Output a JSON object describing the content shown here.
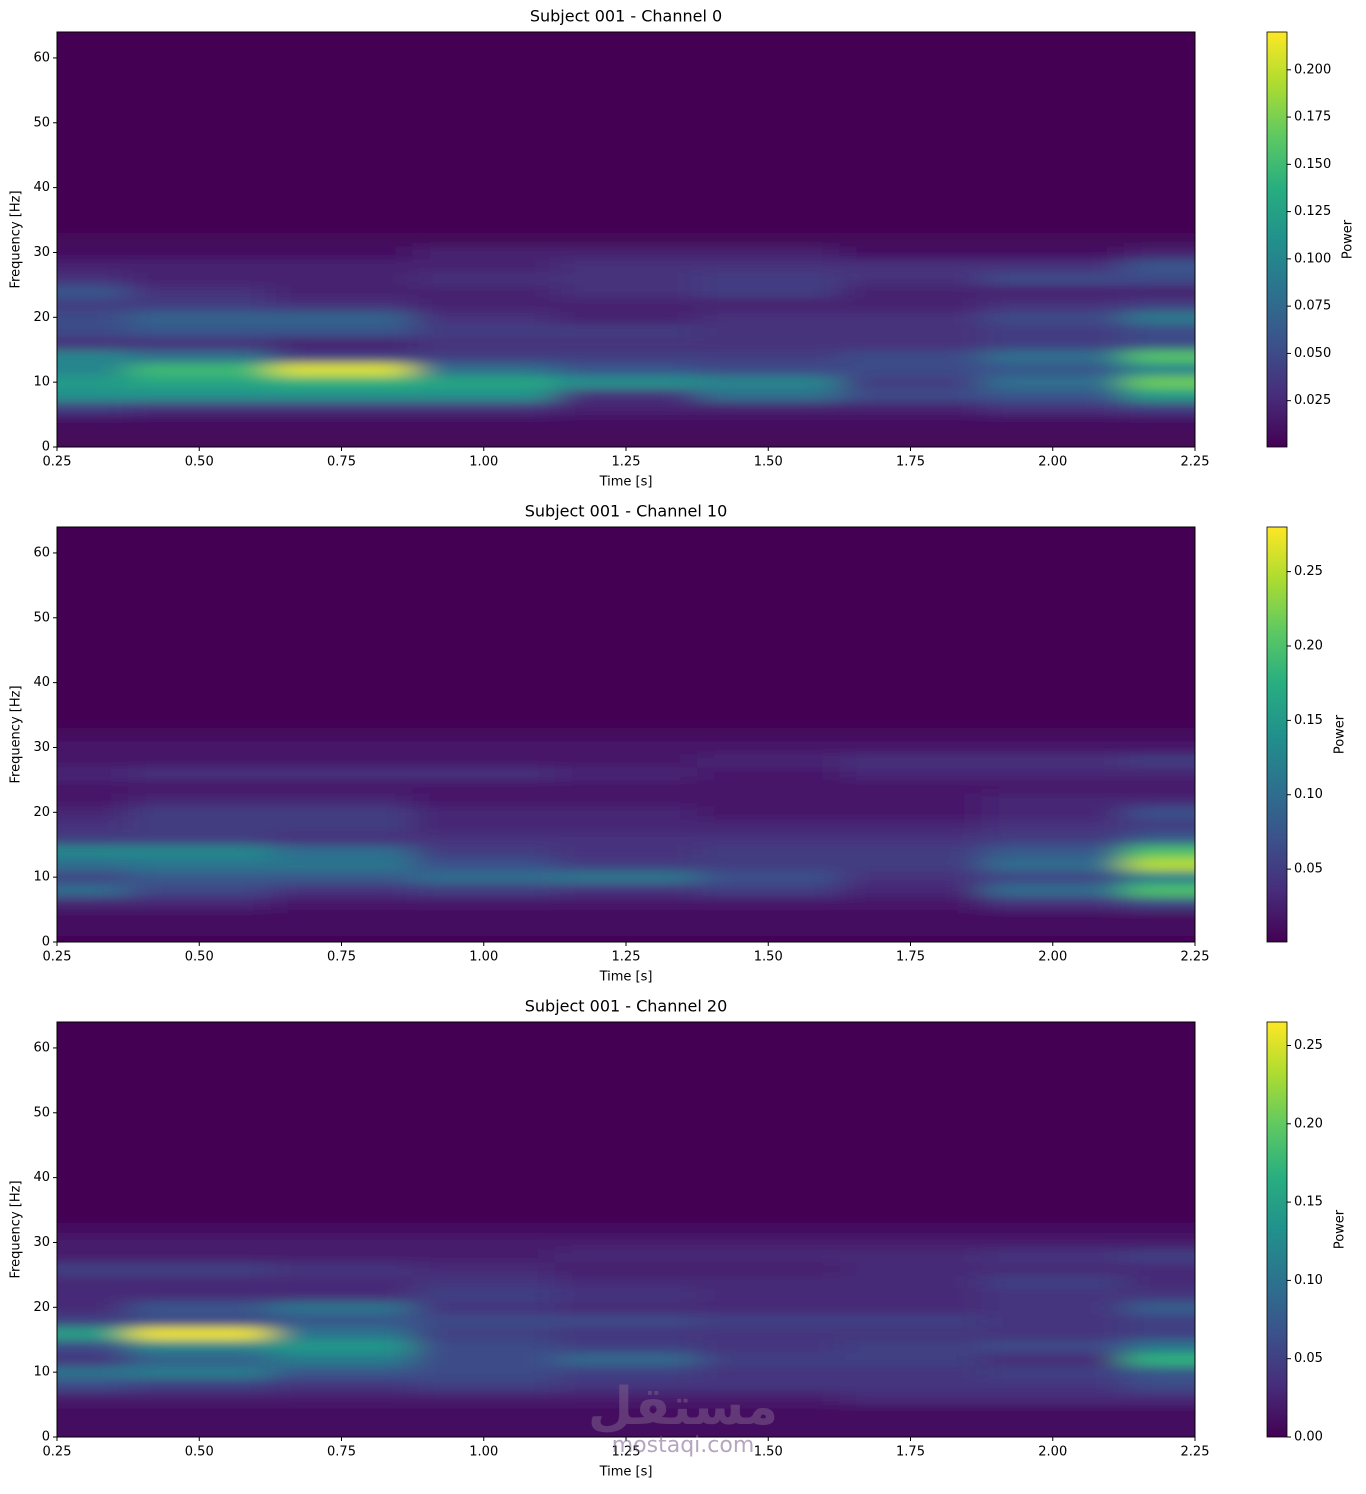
{
  "chart_data": [
    {
      "type": "heatmap",
      "title": "Subject 001 - Channel 0",
      "xlabel": "Time [s]",
      "ylabel": "Frequency [Hz]",
      "colorbar_label": "Power",
      "colormap": "viridis",
      "x": [
        0.25,
        0.5,
        0.75,
        1.0,
        1.25,
        1.5,
        1.75,
        2.0,
        2.25
      ],
      "y": [
        0,
        2,
        4,
        6,
        8,
        10,
        12,
        14,
        16,
        18,
        20,
        22,
        24,
        26,
        28,
        30,
        32
      ],
      "values": [
        [
          0.005,
          0.005,
          0.005,
          0.005,
          0.005,
          0.005,
          0.005,
          0.005,
          0.005
        ],
        [
          0.005,
          0.005,
          0.005,
          0.005,
          0.005,
          0.005,
          0.005,
          0.005,
          0.005
        ],
        [
          0.01,
          0.01,
          0.01,
          0.01,
          0.01,
          0.01,
          0.01,
          0.01,
          0.01
        ],
        [
          0.04,
          0.03,
          0.03,
          0.03,
          0.02,
          0.02,
          0.02,
          0.03,
          0.04
        ],
        [
          0.11,
          0.11,
          0.11,
          0.11,
          0.03,
          0.08,
          0.05,
          0.06,
          0.12
        ],
        [
          0.12,
          0.13,
          0.14,
          0.13,
          0.11,
          0.1,
          0.04,
          0.08,
          0.17
        ],
        [
          0.1,
          0.15,
          0.21,
          0.08,
          0.06,
          0.05,
          0.05,
          0.06,
          0.1
        ],
        [
          0.1,
          0.08,
          0.04,
          0.04,
          0.04,
          0.04,
          0.05,
          0.08,
          0.16
        ],
        [
          0.03,
          0.03,
          0.02,
          0.03,
          0.03,
          0.03,
          0.03,
          0.04,
          0.05
        ],
        [
          0.05,
          0.06,
          0.06,
          0.04,
          0.04,
          0.03,
          0.03,
          0.04,
          0.05
        ],
        [
          0.05,
          0.07,
          0.07,
          0.03,
          0.02,
          0.03,
          0.03,
          0.05,
          0.09
        ],
        [
          0.04,
          0.04,
          0.03,
          0.02,
          0.02,
          0.02,
          0.02,
          0.03,
          0.04
        ],
        [
          0.06,
          0.03,
          0.02,
          0.02,
          0.03,
          0.04,
          0.02,
          0.02,
          0.02
        ],
        [
          0.03,
          0.02,
          0.02,
          0.03,
          0.03,
          0.04,
          0.03,
          0.05,
          0.05
        ],
        [
          0.02,
          0.02,
          0.02,
          0.02,
          0.03,
          0.03,
          0.03,
          0.03,
          0.06
        ],
        [
          0.01,
          0.01,
          0.01,
          0.02,
          0.02,
          0.02,
          0.01,
          0.01,
          0.02
        ],
        [
          0.005,
          0.005,
          0.005,
          0.005,
          0.005,
          0.005,
          0.005,
          0.005,
          0.005
        ]
      ],
      "xlim": [
        0.25,
        2.25
      ],
      "ylim": [
        0,
        64
      ],
      "clim": [
        0.0005,
        0.22
      ],
      "xticks": [
        0.25,
        {
          "value": 0.5,
          "label": "0.50"
        },
        0.75,
        {
          "value": 1.0,
          "label": "1.00"
        },
        1.25,
        {
          "value": 1.5,
          "label": "1.50"
        },
        1.75,
        {
          "value": 2.0,
          "label": "2.00"
        },
        2.25
      ],
      "yticks": [
        0,
        10,
        20,
        30,
        40,
        50,
        60
      ],
      "cticks": [
        0.025,
        {
          "value": 0.05,
          "label": "0.050"
        },
        0.075,
        {
          "value": 0.1,
          "label": "0.100"
        },
        0.125,
        {
          "value": 0.15,
          "label": "0.150"
        },
        0.175,
        {
          "value": 0.2,
          "label": "0.200"
        }
      ]
    },
    {
      "type": "heatmap",
      "title": "Subject 001 - Channel 10",
      "xlabel": "Time [s]",
      "ylabel": "Frequency [Hz]",
      "colorbar_label": "Power",
      "colormap": "viridis",
      "x": [
        0.25,
        0.5,
        0.75,
        1.0,
        1.25,
        1.5,
        1.75,
        2.0,
        2.25
      ],
      "y": [
        0,
        2,
        4,
        6,
        8,
        10,
        12,
        14,
        16,
        18,
        20,
        22,
        24,
        26,
        28,
        30,
        32
      ],
      "values": [
        [
          0.005,
          0.005,
          0.005,
          0.005,
          0.005,
          0.005,
          0.005,
          0.005,
          0.005
        ],
        [
          0.01,
          0.01,
          0.01,
          0.01,
          0.01,
          0.01,
          0.01,
          0.01,
          0.01
        ],
        [
          0.01,
          0.01,
          0.01,
          0.01,
          0.01,
          0.01,
          0.01,
          0.01,
          0.01
        ],
        [
          0.03,
          0.03,
          0.02,
          0.02,
          0.02,
          0.02,
          0.02,
          0.04,
          0.06
        ],
        [
          0.1,
          0.06,
          0.04,
          0.05,
          0.04,
          0.05,
          0.03,
          0.1,
          0.2
        ],
        [
          0.06,
          0.08,
          0.08,
          0.1,
          0.11,
          0.07,
          0.04,
          0.06,
          0.12
        ],
        [
          0.1,
          0.11,
          0.11,
          0.07,
          0.05,
          0.05,
          0.05,
          0.1,
          0.25
        ],
        [
          0.13,
          0.13,
          0.1,
          0.05,
          0.04,
          0.05,
          0.05,
          0.08,
          0.2
        ],
        [
          0.05,
          0.05,
          0.04,
          0.04,
          0.04,
          0.04,
          0.04,
          0.05,
          0.08
        ],
        [
          0.04,
          0.05,
          0.05,
          0.03,
          0.03,
          0.03,
          0.03,
          0.04,
          0.05
        ],
        [
          0.03,
          0.05,
          0.05,
          0.03,
          0.03,
          0.02,
          0.02,
          0.03,
          0.07
        ],
        [
          0.02,
          0.03,
          0.03,
          0.02,
          0.02,
          0.02,
          0.02,
          0.03,
          0.03
        ],
        [
          0.02,
          0.02,
          0.02,
          0.02,
          0.02,
          0.02,
          0.02,
          0.02,
          0.02
        ],
        [
          0.03,
          0.04,
          0.04,
          0.04,
          0.03,
          0.02,
          0.03,
          0.03,
          0.03
        ],
        [
          0.02,
          0.02,
          0.02,
          0.02,
          0.02,
          0.03,
          0.04,
          0.04,
          0.05
        ],
        [
          0.02,
          0.02,
          0.02,
          0.02,
          0.02,
          0.02,
          0.02,
          0.02,
          0.02
        ],
        [
          0.01,
          0.01,
          0.01,
          0.01,
          0.01,
          0.01,
          0.01,
          0.01,
          0.01
        ]
      ],
      "xlim": [
        0.25,
        2.25
      ],
      "ylim": [
        0,
        64
      ],
      "clim": [
        0.001,
        0.28
      ],
      "xticks": [
        0.25,
        {
          "value": 0.5,
          "label": "0.50"
        },
        0.75,
        {
          "value": 1.0,
          "label": "1.00"
        },
        1.25,
        {
          "value": 1.5,
          "label": "1.50"
        },
        1.75,
        {
          "value": 2.0,
          "label": "2.00"
        },
        2.25
      ],
      "yticks": [
        0,
        10,
        20,
        30,
        40,
        50,
        60
      ],
      "cticks": [
        0.05,
        {
          "value": 0.1,
          "label": "0.10"
        },
        0.15,
        {
          "value": 0.2,
          "label": "0.20"
        },
        0.25
      ]
    },
    {
      "type": "heatmap",
      "title": "Subject 001 - Channel 20",
      "xlabel": "Time [s]",
      "ylabel": "Frequency [Hz]",
      "colorbar_label": "Power",
      "colormap": "viridis",
      "x": [
        0.25,
        0.5,
        0.75,
        1.0,
        1.25,
        1.5,
        1.75,
        2.0,
        2.25
      ],
      "y": [
        0,
        2,
        4,
        6,
        8,
        10,
        12,
        14,
        16,
        18,
        20,
        22,
        24,
        26,
        28,
        30,
        32
      ],
      "values": [
        [
          0.01,
          0.01,
          0.01,
          0.01,
          0.01,
          0.01,
          0.01,
          0.01,
          0.01
        ],
        [
          0.01,
          0.01,
          0.01,
          0.01,
          0.01,
          0.01,
          0.01,
          0.01,
          0.01
        ],
        [
          0.01,
          0.01,
          0.01,
          0.01,
          0.01,
          0.01,
          0.01,
          0.01,
          0.01
        ],
        [
          0.02,
          0.02,
          0.02,
          0.02,
          0.02,
          0.02,
          0.03,
          0.03,
          0.03
        ],
        [
          0.06,
          0.05,
          0.04,
          0.05,
          0.04,
          0.04,
          0.04,
          0.04,
          0.06
        ],
        [
          0.1,
          0.11,
          0.07,
          0.06,
          0.05,
          0.04,
          0.04,
          0.05,
          0.07
        ],
        [
          0.04,
          0.08,
          0.11,
          0.06,
          0.09,
          0.05,
          0.05,
          0.03,
          0.17
        ],
        [
          0.06,
          0.12,
          0.14,
          0.06,
          0.05,
          0.04,
          0.05,
          0.06,
          0.1
        ],
        [
          0.15,
          0.26,
          0.1,
          0.05,
          0.04,
          0.04,
          0.04,
          0.04,
          0.05
        ],
        [
          0.05,
          0.06,
          0.07,
          0.06,
          0.06,
          0.05,
          0.05,
          0.04,
          0.05
        ],
        [
          0.03,
          0.07,
          0.1,
          0.04,
          0.03,
          0.03,
          0.03,
          0.04,
          0.08
        ],
        [
          0.03,
          0.03,
          0.03,
          0.05,
          0.04,
          0.03,
          0.03,
          0.04,
          0.04
        ],
        [
          0.03,
          0.03,
          0.03,
          0.04,
          0.03,
          0.03,
          0.03,
          0.05,
          0.03
        ],
        [
          0.05,
          0.05,
          0.04,
          0.03,
          0.02,
          0.02,
          0.03,
          0.03,
          0.03
        ],
        [
          0.02,
          0.02,
          0.02,
          0.02,
          0.03,
          0.03,
          0.03,
          0.04,
          0.05
        ],
        [
          0.02,
          0.02,
          0.02,
          0.02,
          0.02,
          0.02,
          0.02,
          0.02,
          0.02
        ],
        [
          0.01,
          0.01,
          0.01,
          0.01,
          0.01,
          0.01,
          0.01,
          0.01,
          0.01
        ]
      ],
      "xlim": [
        0.25,
        2.25
      ],
      "ylim": [
        0,
        64
      ],
      "clim": [
        0,
        0.265
      ],
      "xticks": [
        0.25,
        {
          "value": 0.5,
          "label": "0.50"
        },
        0.75,
        {
          "value": 1.0,
          "label": "1.00"
        },
        1.25,
        {
          "value": 1.5,
          "label": "1.50"
        },
        1.75,
        {
          "value": 2.0,
          "label": "2.00"
        },
        2.25
      ],
      "yticks": [
        0,
        10,
        20,
        30,
        40,
        50,
        60
      ],
      "cticks": [
        {
          "value": 0,
          "label": "0.00"
        },
        0.05,
        {
          "value": 0.1,
          "label": "0.10"
        },
        0.15,
        {
          "value": 0.2,
          "label": "0.20"
        },
        0.25
      ]
    }
  ],
  "watermark": {
    "logo": "مستقل",
    "site": "mostaqi.com"
  }
}
